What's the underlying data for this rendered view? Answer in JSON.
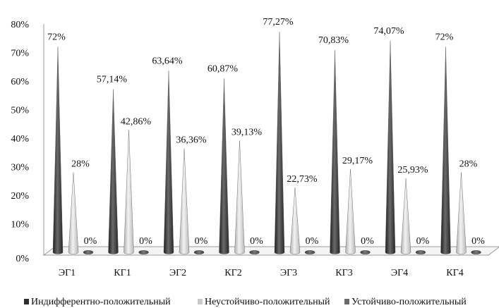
{
  "chart_data": {
    "type": "bar",
    "categories": [
      "ЭГ1",
      "КГ1",
      "ЭГ2",
      "КГ2",
      "ЭГ3",
      "КГ3",
      "ЭГ4",
      "КГ4"
    ],
    "series": [
      {
        "name": "Индифферентно-положительный",
        "values": [
          72,
          57.14,
          63.64,
          60.87,
          77.27,
          70.83,
          74.07,
          72
        ],
        "labels": [
          "72%",
          "57,14%",
          "63,64%",
          "60,87%",
          "77,27%",
          "70,83%",
          "74,07%",
          "72%"
        ],
        "color": "#3a3a3a"
      },
      {
        "name": "Неустойчиво-положительный",
        "values": [
          28,
          42.86,
          36.36,
          39.13,
          22.73,
          29.17,
          25.93,
          28
        ],
        "labels": [
          "28%",
          "42,86%",
          "36,36%",
          "39,13%",
          "22,73%",
          "29,17%",
          "25,93%",
          "28%"
        ],
        "color": "#c8c8c8"
      },
      {
        "name": "Устойчиво-положительный",
        "values": [
          0,
          0,
          0,
          0,
          0,
          0,
          0,
          0
        ],
        "labels": [
          "0%",
          "0%",
          "0%",
          "0%",
          "0%",
          "0%",
          "0%",
          "0%"
        ],
        "color": "#555555"
      }
    ],
    "y_ticks": [
      "0%",
      "10%",
      "20%",
      "30%",
      "40%",
      "50%",
      "60%",
      "70%",
      "80%"
    ],
    "ylim": [
      0,
      80
    ],
    "legend_position": "bottom",
    "grid": false,
    "mark_shape": "cone"
  }
}
